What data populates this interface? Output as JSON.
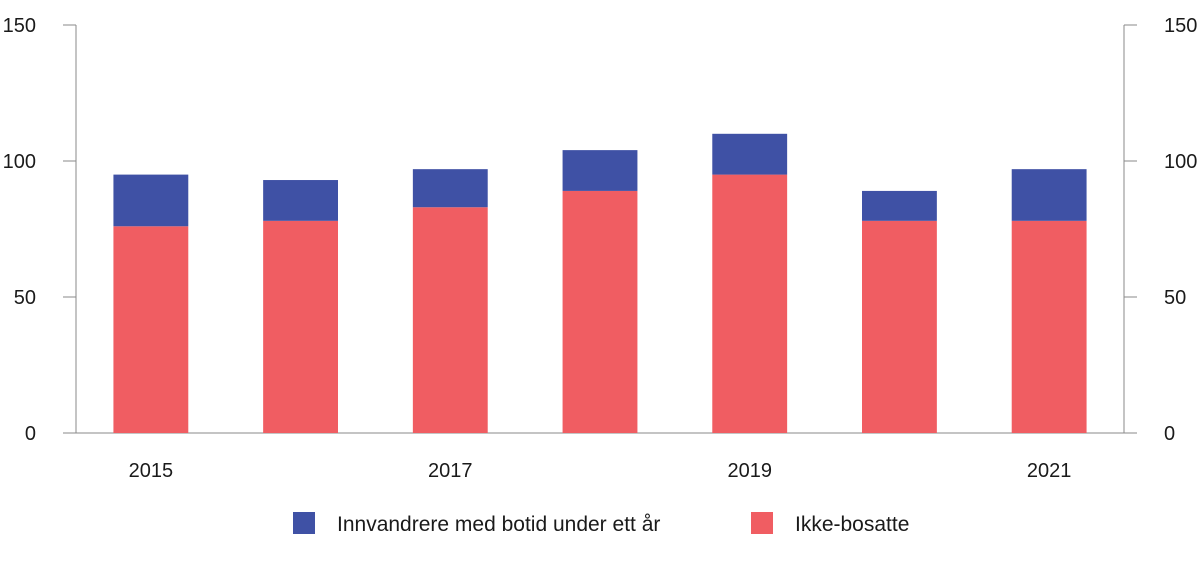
{
  "chart_data": {
    "type": "bar",
    "stacked": true,
    "categories": [
      "2015",
      "2016",
      "2017",
      "2018",
      "2019",
      "2020",
      "2021"
    ],
    "x_tick_labels": [
      "2015",
      "",
      "2017",
      "",
      "2019",
      "",
      "2021"
    ],
    "series": [
      {
        "name": "Ikke-bosatte",
        "color": "#f05d62",
        "values": [
          76,
          78,
          83,
          89,
          95,
          78,
          78
        ]
      },
      {
        "name": "Innvandrere med botid under ett år",
        "color": "#3f51a5",
        "values": [
          19,
          15,
          14,
          15,
          15,
          11,
          19
        ]
      }
    ],
    "ylim": [
      0,
      150
    ],
    "y_ticks": [
      0,
      50,
      100,
      150
    ],
    "y_tick_labels": [
      "0",
      "50",
      "100",
      "150"
    ],
    "y_axis_sides": [
      "left",
      "right"
    ],
    "grid": false,
    "legend": {
      "placement": "bottom-center",
      "entries": [
        {
          "label": "Innvandrere med botid under ett år",
          "color": "#3f51a5"
        },
        {
          "label": "Ikke-bosatte",
          "color": "#f05d62"
        }
      ]
    },
    "title": "",
    "xlabel": "",
    "ylabel": ""
  }
}
